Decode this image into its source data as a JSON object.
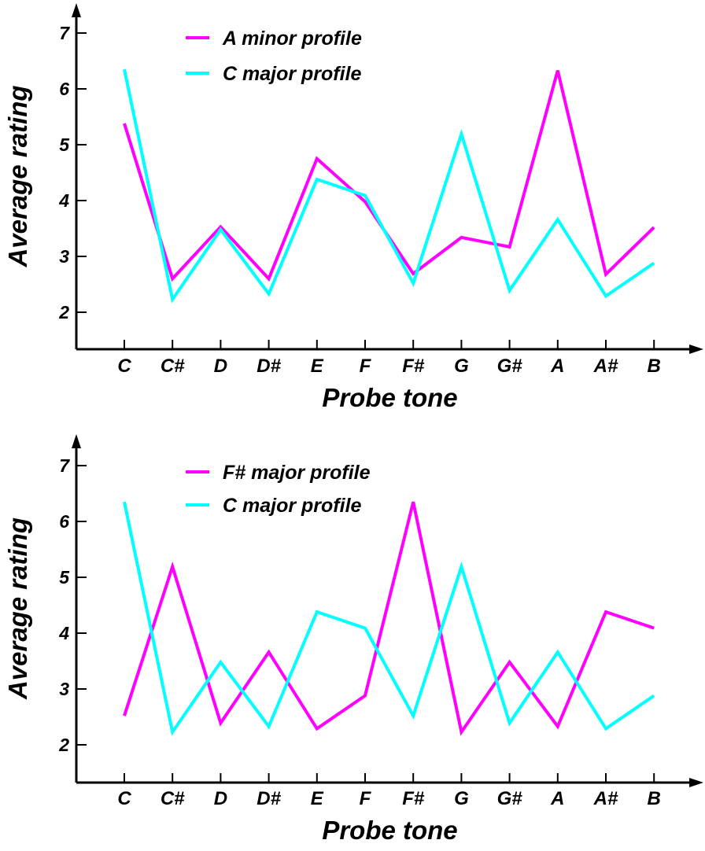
{
  "colors": {
    "magenta": "#ff00ff",
    "cyan": "#00ffff",
    "axis": "#000000"
  },
  "chart_data": [
    {
      "type": "line",
      "categories": [
        "C",
        "C#",
        "D",
        "D#",
        "E",
        "F",
        "F#",
        "G",
        "G#",
        "A",
        "A#",
        "B"
      ],
      "xlabel": "Probe tone",
      "ylabel": "Average rating",
      "ylim": [
        1.3,
        7.3
      ],
      "yticks": [
        2,
        3,
        4,
        5,
        6,
        7
      ],
      "ytick_labels": [
        "2",
        "3",
        "4",
        "5",
        "6",
        "7"
      ],
      "legend_position": "top-left",
      "grid": false,
      "series": [
        {
          "name": "A minor profile",
          "color": "#ff00ff",
          "values": [
            5.38,
            2.6,
            3.53,
            2.6,
            4.75,
            3.98,
            2.69,
            3.34,
            3.17,
            6.33,
            2.68,
            3.52
          ]
        },
        {
          "name": "C major profile",
          "color": "#00ffff",
          "values": [
            6.35,
            2.23,
            3.48,
            2.33,
            4.38,
            4.09,
            2.52,
            5.19,
            2.39,
            3.66,
            2.29,
            2.88
          ]
        }
      ]
    },
    {
      "type": "line",
      "categories": [
        "C",
        "C#",
        "D",
        "D#",
        "E",
        "F",
        "F#",
        "G",
        "G#",
        "A",
        "A#",
        "B"
      ],
      "xlabel": "Probe tone",
      "ylabel": "Average rating",
      "ylim": [
        1.3,
        7.3
      ],
      "yticks": [
        2,
        3,
        4,
        5,
        6,
        7
      ],
      "ytick_labels": [
        "2",
        "3",
        "4",
        "5",
        "6",
        "7"
      ],
      "legend_position": "top-left",
      "grid": false,
      "series": [
        {
          "name": "F# major profile",
          "color": "#ff00ff",
          "values": [
            2.52,
            5.19,
            2.39,
            3.66,
            2.29,
            2.88,
            6.35,
            2.23,
            3.48,
            2.33,
            4.38,
            4.09
          ]
        },
        {
          "name": "C major profile",
          "color": "#00ffff",
          "values": [
            6.35,
            2.23,
            3.48,
            2.33,
            4.38,
            4.09,
            2.52,
            5.19,
            2.39,
            3.66,
            2.29,
            2.88
          ]
        }
      ]
    }
  ]
}
